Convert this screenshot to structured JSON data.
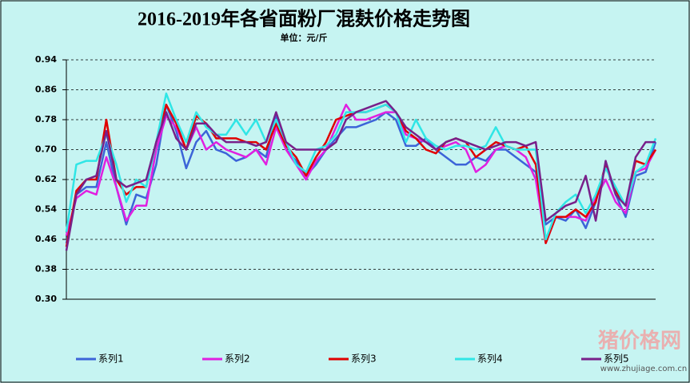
{
  "chart_data": {
    "type": "line",
    "title": "2016-2019年各省面粉厂混麸价格走势图",
    "subtitle": "单位：元/斤",
    "watermark": "猪价格网",
    "watermark_url": "www.zhujiage.com.cn",
    "ylim": [
      0.3,
      0.94
    ],
    "yticks": [
      {
        "value": 0.3,
        "label": "0.30"
      },
      {
        "value": 0.38,
        "label": "0.38"
      },
      {
        "value": 0.46,
        "label": "0.46"
      },
      {
        "value": 0.54,
        "label": "0.54"
      },
      {
        "value": 0.62,
        "label": "0.62"
      },
      {
        "value": 0.7,
        "label": "0.70"
      },
      {
        "value": 0.78,
        "label": "0.78"
      },
      {
        "value": 0.86,
        "label": "0.86"
      },
      {
        "value": 0.94,
        "label": "0.94"
      }
    ],
    "grid": true,
    "legend": "bottom",
    "series": [
      {
        "name": "系列1",
        "color": "#3c64d8",
        "values": [
          0.45,
          0.58,
          0.6,
          0.6,
          0.72,
          0.6,
          0.5,
          0.58,
          0.57,
          0.66,
          0.82,
          0.75,
          0.65,
          0.72,
          0.75,
          0.7,
          0.69,
          0.67,
          0.68,
          0.7,
          0.68,
          0.79,
          0.7,
          0.67,
          0.63,
          0.66,
          0.7,
          0.73,
          0.76,
          0.76,
          0.77,
          0.78,
          0.8,
          0.78,
          0.71,
          0.71,
          0.73,
          0.7,
          0.68,
          0.66,
          0.66,
          0.68,
          0.67,
          0.7,
          0.7,
          0.68,
          0.66,
          0.64,
          0.5,
          0.52,
          0.51,
          0.54,
          0.49,
          0.56,
          0.66,
          0.58,
          0.52,
          0.63,
          0.64,
          0.72
        ]
      },
      {
        "name": "系列2",
        "color": "#e020e0",
        "values": [
          0.47,
          0.57,
          0.59,
          0.58,
          0.68,
          0.6,
          0.51,
          0.55,
          0.55,
          0.7,
          0.79,
          0.76,
          0.7,
          0.76,
          0.7,
          0.72,
          0.7,
          0.69,
          0.68,
          0.7,
          0.66,
          0.76,
          0.7,
          0.66,
          0.62,
          0.67,
          0.7,
          0.76,
          0.82,
          0.78,
          0.78,
          0.79,
          0.8,
          0.8,
          0.74,
          0.73,
          0.72,
          0.7,
          0.71,
          0.72,
          0.7,
          0.64,
          0.66,
          0.7,
          0.71,
          0.7,
          0.68,
          0.62,
          0.45,
          0.52,
          0.52,
          0.52,
          0.51,
          0.57,
          0.62,
          0.56,
          0.53,
          0.64,
          0.65,
          0.7
        ]
      },
      {
        "name": "系列3",
        "color": "#e00000",
        "values": [
          0.44,
          0.59,
          0.62,
          0.62,
          0.78,
          0.62,
          0.58,
          0.6,
          0.6,
          0.72,
          0.82,
          0.77,
          0.7,
          0.79,
          0.77,
          0.73,
          0.73,
          0.73,
          0.72,
          0.72,
          0.7,
          0.77,
          0.71,
          0.68,
          0.63,
          0.68,
          0.72,
          0.78,
          0.79,
          0.8,
          0.8,
          0.81,
          0.82,
          0.8,
          0.75,
          0.73,
          0.7,
          0.69,
          0.72,
          0.73,
          0.72,
          0.68,
          0.7,
          0.72,
          0.71,
          0.7,
          0.71,
          0.66,
          0.45,
          0.52,
          0.52,
          0.54,
          0.52,
          0.56,
          0.66,
          0.59,
          0.55,
          0.67,
          0.66,
          0.7
        ]
      },
      {
        "name": "系列4",
        "color": "#30e6e6",
        "values": [
          0.48,
          0.66,
          0.67,
          0.67,
          0.74,
          0.66,
          0.56,
          0.62,
          0.6,
          0.72,
          0.85,
          0.78,
          0.72,
          0.8,
          0.76,
          0.74,
          0.74,
          0.78,
          0.74,
          0.78,
          0.72,
          0.78,
          0.72,
          0.66,
          0.64,
          0.7,
          0.71,
          0.74,
          0.8,
          0.8,
          0.8,
          0.81,
          0.82,
          0.8,
          0.72,
          0.78,
          0.73,
          0.71,
          0.7,
          0.71,
          0.71,
          0.7,
          0.71,
          0.76,
          0.71,
          0.7,
          0.7,
          0.7,
          0.46,
          0.53,
          0.56,
          0.58,
          0.53,
          0.58,
          0.65,
          0.6,
          0.55,
          0.64,
          0.66,
          0.73
        ]
      },
      {
        "name": "系列5",
        "color": "#78208a",
        "values": [
          0.43,
          0.58,
          0.62,
          0.63,
          0.75,
          0.62,
          0.6,
          0.61,
          0.62,
          0.72,
          0.8,
          0.73,
          0.7,
          0.77,
          0.77,
          0.74,
          0.72,
          0.72,
          0.72,
          0.71,
          0.72,
          0.8,
          0.72,
          0.7,
          0.7,
          0.7,
          0.7,
          0.72,
          0.78,
          0.8,
          0.81,
          0.82,
          0.83,
          0.8,
          0.76,
          0.74,
          0.72,
          0.7,
          0.72,
          0.73,
          0.72,
          0.71,
          0.7,
          0.71,
          0.72,
          0.72,
          0.71,
          0.72,
          0.51,
          0.53,
          0.55,
          0.56,
          0.63,
          0.51,
          0.67,
          0.58,
          0.55,
          0.68,
          0.72,
          0.72
        ]
      }
    ]
  }
}
